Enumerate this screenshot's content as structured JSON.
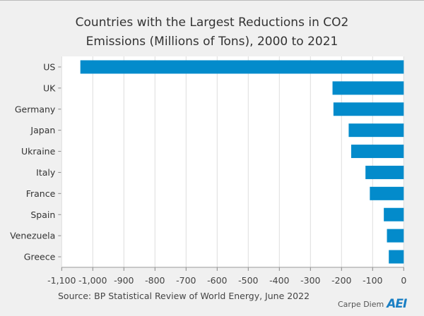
{
  "chart_data": {
    "type": "bar",
    "orientation": "horizontal",
    "title": "Countries with the Largest Reductions in CO2 Emissions (Millions of Tons), 2000 to 2021",
    "title_lines": [
      "Countries with the Largest Reductions in CO2",
      "Emissions (Millions of Tons), 2000 to 2021"
    ],
    "categories": [
      "US",
      "UK",
      "Germany",
      "Japan",
      "Ukraine",
      "Italy",
      "France",
      "Spain",
      "Venezuela",
      "Greece"
    ],
    "values": [
      -1040,
      -229,
      -226,
      -177,
      -169,
      -123,
      -109,
      -64,
      -54,
      -48
    ],
    "xlim": [
      -1100,
      0
    ],
    "xticks": [
      -1100,
      -1000,
      -900,
      -800,
      -700,
      -600,
      -500,
      -400,
      -300,
      -200,
      -100,
      0
    ],
    "xtick_labels": [
      "-1,100",
      "-1,000",
      "-900",
      "-800",
      "-700",
      "-600",
      "-500",
      "-400",
      "-300",
      "-200",
      "-100",
      "0"
    ],
    "xlabel": "",
    "ylabel": "",
    "grid": "vertical",
    "bar_color": "#038bcb",
    "source": "Source: BP Statistical Review of World Energy, June 2022"
  },
  "branding": {
    "carpe_diem": "Carpe Diem",
    "logo": "AEI"
  }
}
